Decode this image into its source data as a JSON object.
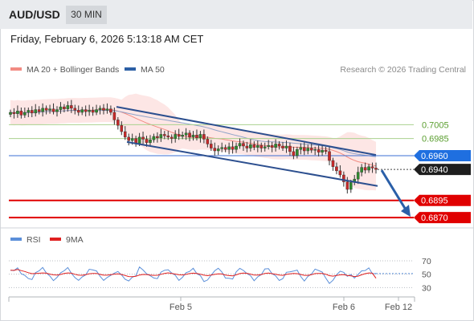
{
  "header": {
    "symbol": "AUD/USD",
    "timeframe": "30 MIN"
  },
  "datetime": "Friday, February 6, 2026 5:13:18 AM CET",
  "legend": [
    {
      "label": "MA 20 + Bollinger Bands",
      "color": "#f28b82"
    },
    {
      "label": "MA 50",
      "color": "#2c5fa5"
    }
  ],
  "credit": "Research © 2026 Trading Central",
  "levels": [
    {
      "value": 0.7005,
      "label": "0.7005",
      "style": "green-line"
    },
    {
      "value": 0.6985,
      "label": "0.6985",
      "style": "green-line"
    },
    {
      "value": 0.696,
      "label": "0.6960",
      "style": "pivot"
    },
    {
      "value": 0.694,
      "label": "0.6940",
      "style": "last-price"
    },
    {
      "value": 0.6895,
      "label": "0.6895",
      "style": "support"
    },
    {
      "value": 0.687,
      "label": "0.6870",
      "style": "support"
    }
  ],
  "rsi_legend": [
    {
      "label": "RSI",
      "color": "#5b8fd9"
    },
    {
      "label": "9MA",
      "color": "#e02020"
    }
  ],
  "rsi_ticks": [
    "70",
    "50",
    "30"
  ],
  "x_labels": [
    "Feb 5",
    "Feb 6",
    "Feb 12"
  ],
  "chart_data": {
    "type": "candlestick",
    "symbol": "AUD/USD",
    "interval": "30 MIN",
    "yrange": [
      0.6855,
      0.7065
    ],
    "price_series_close": [
      0.7023,
      0.7021,
      0.7025,
      0.7019,
      0.7023,
      0.7026,
      0.7022,
      0.7027,
      0.7024,
      0.7029,
      0.7026,
      0.7028,
      0.7024,
      0.7027,
      0.7031,
      0.7028,
      0.7033,
      0.7029,
      0.7026,
      0.7023,
      0.7027,
      0.7024,
      0.7026,
      0.7023,
      0.7027,
      0.7029,
      0.7026,
      0.7028,
      0.7023,
      0.7012,
      0.7004,
      0.6995,
      0.6987,
      0.6982,
      0.6985,
      0.6978,
      0.6987,
      0.6984,
      0.6979,
      0.6983,
      0.6988,
      0.6986,
      0.6991,
      0.6989,
      0.6987,
      0.6985,
      0.6991,
      0.6988,
      0.699,
      0.6993,
      0.6987,
      0.699,
      0.6986,
      0.6991,
      0.6984,
      0.6977,
      0.6971,
      0.6967,
      0.697,
      0.6972,
      0.6969,
      0.6973,
      0.6969,
      0.6974,
      0.6978,
      0.6974,
      0.6971,
      0.6976,
      0.6972,
      0.6975,
      0.6971,
      0.6973,
      0.6975,
      0.6972,
      0.6977,
      0.6974,
      0.6971,
      0.6974,
      0.6966,
      0.696,
      0.6969,
      0.6972,
      0.6967,
      0.6971,
      0.6968,
      0.6969,
      0.6965,
      0.6968,
      0.6966,
      0.6953,
      0.6944,
      0.6938,
      0.6932,
      0.6922,
      0.6911,
      0.6921,
      0.6926,
      0.6936,
      0.6943,
      0.6939,
      0.6944,
      0.6942,
      0.694
    ],
    "trend_channel_upper": [
      [
        0.7031,
        0.6961
      ]
    ],
    "trend_channel_lower": [
      [
        0.698,
        0.6916
      ]
    ],
    "forecast_arrow": {
      "from": 0.694,
      "to": 0.687
    },
    "rsi": {
      "ticks": [
        70,
        50,
        30
      ],
      "rsi_start": 56,
      "rsi_end": 51,
      "ma_end": 44
    },
    "x_ticks": [
      "Feb 5",
      "Feb 6",
      "Feb 12"
    ]
  }
}
